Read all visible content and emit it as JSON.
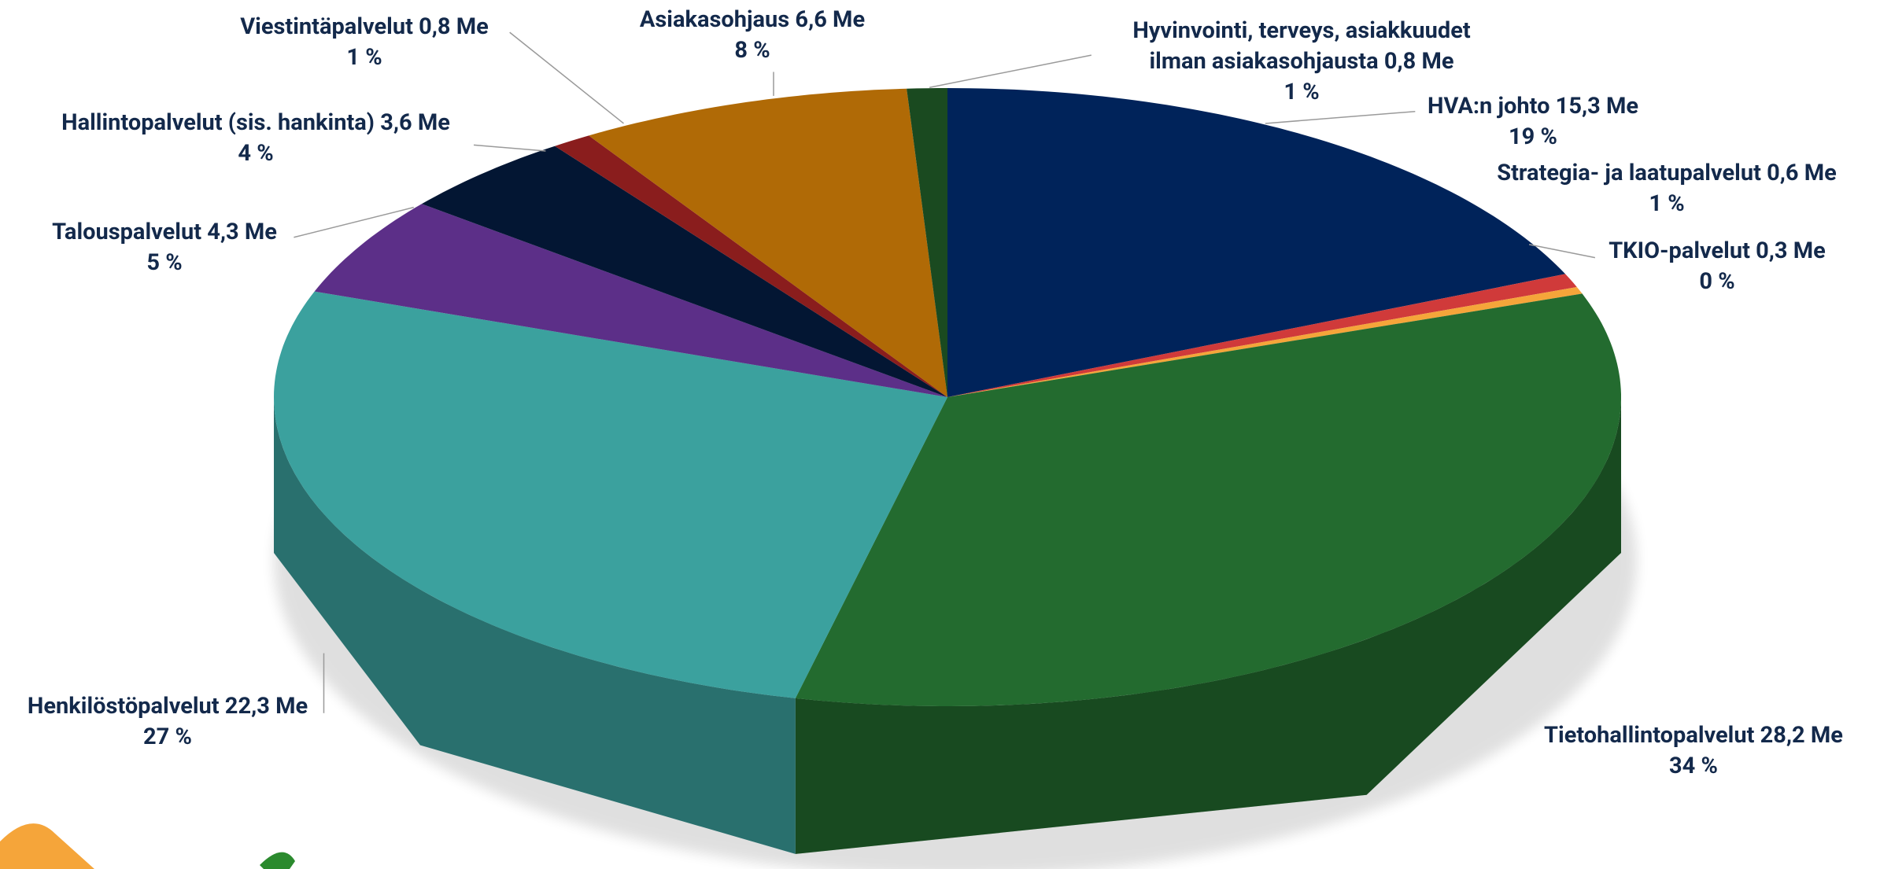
{
  "chart_data": {
    "type": "pie3d",
    "categories": [
      "HVA:n johto",
      "Strategia- ja laatupalvelut",
      "TKIO-palvelut",
      "Tietohallintopalvelut",
      "Henkilöstöpalvelut",
      "Talouspalvelut",
      "Hallintopalvelut (sis. hankinta)",
      "Viestintäpalvelut",
      "Asiakasohjaus",
      "Hyvinvointi, terveys, asiakkuudet ilman asiakasohjausta"
    ],
    "values": [
      15.3,
      0.6,
      0.3,
      28.2,
      22.3,
      4.3,
      3.6,
      0.8,
      6.6,
      0.8
    ],
    "value_labels": [
      "15,3 Me",
      "0,6 Me",
      "0,3 Me",
      "28,2 Me",
      "22,3 Me",
      "4,3 Me",
      "3,6 Me",
      "0,8 Me",
      "6,6 Me",
      "0,8 Me"
    ],
    "percent_labels": [
      "19 %",
      "1 %",
      "0 %",
      "34 %",
      "27 %",
      "5 %",
      "4 %",
      "1 %",
      "8 %",
      "1 %"
    ],
    "colors": [
      "#00235a",
      "#d03a3a",
      "#f5a53a",
      "#236b2f",
      "#3ba19e",
      "#5c2f88",
      "#031633",
      "#8a1d1d",
      "#b06a06",
      "#1a4a20"
    ]
  }
}
